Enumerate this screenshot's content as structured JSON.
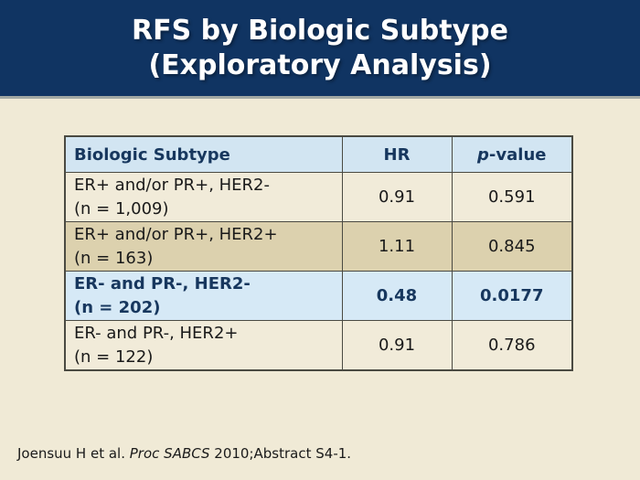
{
  "slide": {
    "title_line1": "RFS by Biologic Subtype",
    "title_line2": "(Exploratory Analysis)",
    "citation": {
      "prefix": "Joensuu H et al. ",
      "source_italic": "Proc SABCS",
      "suffix": " 2010;Abstract S4-1."
    }
  },
  "table": {
    "header": {
      "subtype": "Biologic Subtype",
      "hr": "HR",
      "p_italic": "p",
      "p_rest": "-value"
    },
    "rows": [
      {
        "subtype_line1": "ER+ and/or PR+, HER2-",
        "subtype_line2": "(n = 1,009)",
        "hr": "0.91",
        "p_value": "0.591",
        "highlight": false
      },
      {
        "subtype_line1": "ER+ and/or PR+, HER2+",
        "subtype_line2": "(n = 163)",
        "hr": "1.11",
        "p_value": "0.845",
        "highlight": false
      },
      {
        "subtype_line1": "ER- and PR-, HER2-",
        "subtype_line2": "(n = 202)",
        "hr": "0.48",
        "p_value": "0.0177",
        "highlight": true
      },
      {
        "subtype_line1": "ER- and PR-, HER2+",
        "subtype_line2": "(n = 122)",
        "hr": "0.91",
        "p_value": "0.786",
        "highlight": false
      }
    ]
  },
  "colors": {
    "header_band": "#103462",
    "title_text": "#ffffff",
    "page_background": "#f0ead6",
    "table_header_bg": "#d2e5f2",
    "row_cream_bg": "#f1ebd9",
    "row_tan_bg": "#dcd1ae",
    "row_highlight_bg": "#d6e9f6",
    "navy_text": "#17375e",
    "body_text": "#1a1a1a",
    "table_border": "#4a4a42",
    "band_separator": "#a2a8a3"
  }
}
